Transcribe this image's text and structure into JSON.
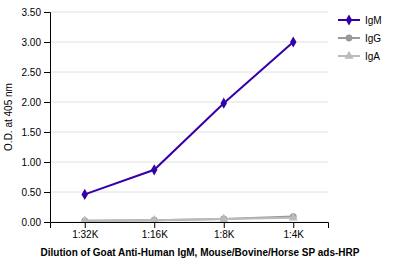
{
  "chart_data": {
    "type": "line",
    "xlabel": "Dilution of Goat Anti-Human IgM, Mouse/Bovine/Horse SP ads-HRP",
    "ylabel": "O.D. at 405 nm",
    "categories": [
      "1:32K",
      "1:16K",
      "1:8K",
      "1:4K"
    ],
    "series": [
      {
        "name": "IgM",
        "color": "#3300aa",
        "marker": "diamond",
        "values": [
          0.46,
          0.87,
          1.98,
          3.0
        ]
      },
      {
        "name": "IgG",
        "color": "#999999",
        "marker": "circle",
        "values": [
          0.02,
          0.03,
          0.05,
          0.09
        ]
      },
      {
        "name": "IgA",
        "color": "#bbbbbb",
        "marker": "triangle",
        "values": [
          0.02,
          0.03,
          0.05,
          0.07
        ]
      }
    ],
    "ylim": [
      0,
      3.5
    ],
    "yticks": [
      {
        "value": 0,
        "label": "0.00"
      },
      {
        "value": 0.5,
        "label": "0.50"
      },
      {
        "value": 1,
        "label": "1.00"
      },
      {
        "value": 1.5,
        "label": "1.50"
      },
      {
        "value": 2,
        "label": "2.00"
      },
      {
        "value": 2.5,
        "label": "2.50"
      },
      {
        "value": 3,
        "label": "3.00"
      },
      {
        "value": 3.5,
        "label": "3.50"
      }
    ],
    "grid": true,
    "legend": "right"
  }
}
